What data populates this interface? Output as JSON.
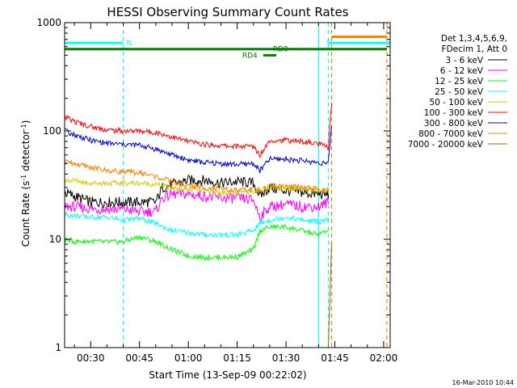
{
  "chart_data": {
    "type": "line",
    "title": "HESSI Observing Summary Count Rates",
    "xlabel": "Start Time (13-Sep-09 00:22:02)",
    "ylabel_main": "Count Rate (s",
    "ylabel_sup1": "-1",
    "ylabel_mid": " detector",
    "ylabel_sup2": "-1",
    "ylabel_end": ")",
    "yscale": "log",
    "ylim": [
      1,
      1000
    ],
    "yticks": [
      {
        "value": 1,
        "label": "1"
      },
      {
        "value": 10,
        "label": "10"
      },
      {
        "value": 100,
        "label": "100"
      },
      {
        "value": 1000,
        "label": "1000"
      }
    ],
    "xlim_minutes": [
      22,
      122
    ],
    "xticks": [
      {
        "minute": 30,
        "label": "00:30"
      },
      {
        "minute": 45,
        "label": "00:45"
      },
      {
        "minute": 60,
        "label": "01:00"
      },
      {
        "minute": 75,
        "label": "01:15"
      },
      {
        "minute": 90,
        "label": "01:30"
      },
      {
        "minute": 105,
        "label": "01:45"
      },
      {
        "minute": 120,
        "label": "02:00"
      }
    ],
    "legend": {
      "placement": "right",
      "header": [
        "Det 1,3,4,5,6,9,",
        "FDecim 1, Att 0"
      ]
    },
    "series": [
      {
        "name": "3 - 6 keV",
        "color": "#000000",
        "points": [
          [
            22,
            27
          ],
          [
            25,
            25
          ],
          [
            30,
            22
          ],
          [
            35,
            22
          ],
          [
            40,
            22
          ],
          [
            45,
            22
          ],
          [
            50,
            22
          ],
          [
            52,
            30
          ],
          [
            55,
            32
          ],
          [
            60,
            35
          ],
          [
            65,
            35
          ],
          [
            70,
            33
          ],
          [
            75,
            34
          ],
          [
            80,
            33
          ],
          [
            82,
            25
          ],
          [
            85,
            30
          ],
          [
            90,
            28
          ],
          [
            95,
            27
          ],
          [
            100,
            26
          ],
          [
            103,
            26
          ]
        ]
      },
      {
        "name": "6 - 12 keV",
        "color": "#ff00ff",
        "points": [
          [
            22,
            20
          ],
          [
            25,
            20
          ],
          [
            30,
            19
          ],
          [
            35,
            19
          ],
          [
            40,
            19
          ],
          [
            45,
            18
          ],
          [
            50,
            18
          ],
          [
            52,
            24
          ],
          [
            55,
            26
          ],
          [
            60,
            26
          ],
          [
            65,
            25
          ],
          [
            70,
            24
          ],
          [
            75,
            24
          ],
          [
            80,
            23
          ],
          [
            82,
            16
          ],
          [
            85,
            20
          ],
          [
            90,
            21
          ],
          [
            95,
            20
          ],
          [
            100,
            20
          ],
          [
            103,
            22
          ]
        ]
      },
      {
        "name": "12 - 25 keV",
        "color": "#00ff00",
        "points": [
          [
            22,
            10
          ],
          [
            25,
            9.5
          ],
          [
            30,
            9.6
          ],
          [
            35,
            9.4
          ],
          [
            40,
            9.5
          ],
          [
            45,
            10.5
          ],
          [
            50,
            9.5
          ],
          [
            55,
            8
          ],
          [
            60,
            7
          ],
          [
            65,
            6.8
          ],
          [
            70,
            6.8
          ],
          [
            75,
            6.9
          ],
          [
            80,
            8
          ],
          [
            82,
            12
          ],
          [
            85,
            13
          ],
          [
            90,
            13
          ],
          [
            95,
            12
          ],
          [
            100,
            11
          ],
          [
            103,
            12
          ]
        ]
      },
      {
        "name": "25 - 50 keV",
        "color": "#00ffff",
        "points": [
          [
            22,
            17
          ],
          [
            25,
            16.5
          ],
          [
            30,
            16
          ],
          [
            35,
            16
          ],
          [
            40,
            15
          ],
          [
            45,
            15.5
          ],
          [
            50,
            14
          ],
          [
            55,
            12
          ],
          [
            60,
            11.5
          ],
          [
            65,
            11
          ],
          [
            70,
            11
          ],
          [
            75,
            11
          ],
          [
            80,
            12
          ],
          [
            82,
            14
          ],
          [
            85,
            15
          ],
          [
            90,
            16
          ],
          [
            95,
            15
          ],
          [
            100,
            14.5
          ],
          [
            103,
            15
          ]
        ]
      },
      {
        "name": "50 - 100 keV",
        "color": "#cccc00",
        "points": [
          [
            22,
            35
          ],
          [
            25,
            35
          ],
          [
            30,
            33
          ],
          [
            35,
            33
          ],
          [
            40,
            33
          ],
          [
            45,
            33
          ],
          [
            50,
            32
          ],
          [
            55,
            30
          ],
          [
            60,
            29
          ],
          [
            65,
            28
          ],
          [
            70,
            27
          ],
          [
            75,
            27
          ],
          [
            80,
            28
          ],
          [
            82,
            29
          ],
          [
            85,
            30
          ],
          [
            90,
            30
          ],
          [
            95,
            29
          ],
          [
            100,
            28
          ],
          [
            103,
            28
          ]
        ]
      },
      {
        "name": "100 - 300 keV",
        "color": "#ff0000",
        "points": [
          [
            22,
            135
          ],
          [
            25,
            122
          ],
          [
            30,
            110
          ],
          [
            35,
            102
          ],
          [
            40,
            100
          ],
          [
            45,
            100
          ],
          [
            50,
            97
          ],
          [
            55,
            88
          ],
          [
            60,
            80
          ],
          [
            65,
            75
          ],
          [
            70,
            73
          ],
          [
            75,
            72
          ],
          [
            80,
            72
          ],
          [
            82,
            60
          ],
          [
            85,
            82
          ],
          [
            90,
            82
          ],
          [
            95,
            80
          ],
          [
            100,
            76
          ],
          [
            103,
            70
          ],
          [
            104,
            180
          ]
        ]
      },
      {
        "name": "300 - 800 keV",
        "color": "#0000cc",
        "points": [
          [
            22,
            100
          ],
          [
            25,
            92
          ],
          [
            30,
            82
          ],
          [
            35,
            77
          ],
          [
            40,
            75
          ],
          [
            45,
            74
          ],
          [
            50,
            68
          ],
          [
            55,
            60
          ],
          [
            60,
            54
          ],
          [
            65,
            51
          ],
          [
            70,
            50
          ],
          [
            75,
            49
          ],
          [
            80,
            50
          ],
          [
            82,
            43
          ],
          [
            85,
            55
          ],
          [
            90,
            55
          ],
          [
            95,
            53
          ],
          [
            100,
            51
          ],
          [
            103,
            50
          ],
          [
            104,
            110
          ]
        ]
      },
      {
        "name": "800 - 7000 keV",
        "color": "#ff8000",
        "points": [
          [
            22,
            52
          ],
          [
            25,
            50
          ],
          [
            30,
            46
          ],
          [
            35,
            43
          ],
          [
            40,
            42
          ],
          [
            45,
            41
          ],
          [
            50,
            38
          ],
          [
            55,
            34
          ],
          [
            60,
            31
          ],
          [
            65,
            30
          ],
          [
            70,
            29
          ],
          [
            75,
            28
          ],
          [
            80,
            29
          ],
          [
            82,
            28
          ],
          [
            85,
            31
          ],
          [
            90,
            31
          ],
          [
            95,
            30
          ],
          [
            100,
            29
          ],
          [
            103,
            28
          ]
        ]
      },
      {
        "name": "7000 - 20000 keV",
        "color": "#996600",
        "points": [
          [
            103,
            1
          ],
          [
            104,
            9
          ]
        ]
      }
    ],
    "flags": [
      {
        "label": "N",
        "color": "#00ffff",
        "y": 650,
        "x_range": [
          22,
          40
        ]
      },
      {
        "label": "S",
        "color": "#00ffff",
        "y": 650,
        "x_range": [
          103,
          122
        ]
      },
      {
        "label": "",
        "color": "#ff8000",
        "y": 740,
        "x_range": [
          104,
          121
        ]
      },
      {
        "label": "RD0",
        "color": "#008000",
        "y": 570,
        "x_range": [
          22,
          121
        ]
      },
      {
        "label": "RD4",
        "color": "#008000",
        "y": 500,
        "x_range": [
          83,
          87
        ]
      }
    ],
    "vlines": [
      {
        "minute": 40,
        "color": "#00ffff",
        "style": "dashed"
      },
      {
        "minute": 100,
        "color": "#00ffff",
        "style": "solid"
      },
      {
        "minute": 103,
        "color": "#00ffff",
        "style": "dashed"
      },
      {
        "minute": 104,
        "color": "#ff8000",
        "style": "dashed"
      },
      {
        "minute": 121,
        "color": "#ff8000",
        "style": "dashed"
      }
    ]
  },
  "footer": {
    "timestamp": "16-Mar-2010 10:44"
  }
}
